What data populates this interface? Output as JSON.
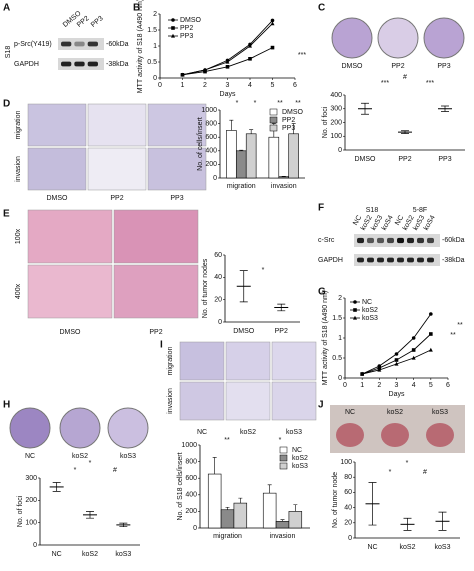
{
  "panels": {
    "A": {
      "letter": "A",
      "lanes": [
        "DMSO",
        "PP2",
        "PP3"
      ],
      "cell_line": "S18",
      "rows": [
        "p-Src(Y419)",
        "GAPDH"
      ],
      "sizes": [
        "-60kDa",
        "-38kDa"
      ]
    },
    "B": {
      "letter": "B"
    },
    "C": {
      "letter": "C",
      "dishes": [
        "DMSO",
        "PP2",
        "PP3"
      ]
    },
    "D": {
      "letter": "D",
      "rows": [
        "migration",
        "invasion"
      ],
      "columns": [
        "DMSO",
        "PP2",
        "PP3"
      ]
    },
    "E": {
      "letter": "E",
      "rows": [
        "100x",
        "400x"
      ],
      "columns": [
        "DMSO",
        "PP2"
      ]
    },
    "F": {
      "letter": "F",
      "groups": [
        "S18",
        "5-8F"
      ],
      "lanes": [
        "NC",
        "koS2",
        "koS3",
        "koS4",
        "NC",
        "koS2",
        "koS3",
        "koS4"
      ],
      "rows": [
        "c-Src",
        "GAPDH"
      ],
      "sizes": [
        "-60kDa",
        "-38kDa"
      ]
    },
    "G": {
      "letter": "G"
    },
    "H": {
      "letter": "H",
      "dishes": [
        "NC",
        "koS2",
        "koS3"
      ]
    },
    "I": {
      "letter": "I",
      "rows": [
        "migration",
        "invasion"
      ],
      "columns": [
        "NC",
        "koS2",
        "koS3"
      ]
    },
    "J": {
      "letter": "J",
      "tumors": [
        "NC",
        "koS2",
        "koS3"
      ]
    }
  },
  "chart_data": [
    {
      "type": "line",
      "y_label": "MTT activity of S18 (A490 nm)",
      "x_label": "Days",
      "x": [
        1,
        2,
        3,
        4,
        5
      ],
      "xlim": [
        0,
        6
      ],
      "xticks": [
        0,
        1,
        2,
        3,
        4,
        5,
        6
      ],
      "ylim": [
        0,
        2
      ],
      "yticks": [
        0,
        0.5,
        1,
        1.5,
        2
      ],
      "series": [
        {
          "name": "DMSO",
          "color": "#000000",
          "values": [
            0.1,
            0.25,
            0.55,
            1.05,
            1.8
          ]
        },
        {
          "name": "PP2",
          "color": "#000000",
          "values": [
            0.1,
            0.2,
            0.35,
            0.6,
            0.95
          ]
        },
        {
          "name": "PP3",
          "color": "#000000",
          "values": [
            0.1,
            0.25,
            0.5,
            1.0,
            1.7
          ]
        }
      ],
      "annotations": [
        "***"
      ]
    },
    {
      "type": "scatter",
      "y_label": "No. of foci",
      "categories": [
        "DMSO",
        "PP2",
        "PP3"
      ],
      "values": [
        300,
        130,
        300
      ],
      "errors": [
        40,
        10,
        20
      ],
      "ylim": [
        0,
        400
      ],
      "yticks": [
        0,
        100,
        200,
        300,
        400
      ],
      "color": "#000000",
      "annotations": [
        "***",
        "***",
        "#"
      ]
    },
    {
      "type": "bar",
      "y_label": "No. of cells/insert",
      "categories": [
        "migration",
        "invasion"
      ],
      "ylim": [
        0,
        1000
      ],
      "yticks": [
        0,
        200,
        400,
        600,
        800,
        1000
      ],
      "series": [
        {
          "name": "DMSO",
          "color": "#ffffff",
          "values": [
            700,
            600
          ],
          "errors": [
            150,
            200
          ]
        },
        {
          "name": "PP2",
          "color": "#8a8a8a",
          "values": [
            400,
            20
          ],
          "errors": [
            10,
            5
          ]
        },
        {
          "name": "PP3",
          "color": "#d0d0d0",
          "values": [
            650,
            650
          ],
          "errors": [
            60,
            150
          ]
        }
      ],
      "annotations": [
        "*",
        "*",
        "**",
        "**"
      ]
    },
    {
      "type": "scatter",
      "y_label": "No. of tumor nodes",
      "categories": [
        "DMSO",
        "PP2"
      ],
      "values": [
        32,
        13
      ],
      "errors": [
        14,
        3
      ],
      "ylim": [
        0,
        60
      ],
      "yticks": [
        0,
        20,
        40,
        60
      ],
      "color": "#000000",
      "annotations": [
        "*"
      ]
    },
    {
      "type": "line",
      "y_label": "MTT activity of S18 (A490 nm)",
      "x_label": "Days",
      "x": [
        1,
        2,
        3,
        4,
        5
      ],
      "xlim": [
        0,
        6
      ],
      "xticks": [
        0,
        1,
        2,
        3,
        4,
        5,
        6
      ],
      "ylim": [
        0,
        2
      ],
      "yticks": [
        0,
        0.5,
        1,
        1.5,
        2
      ],
      "series": [
        {
          "name": "NC",
          "color": "#000000",
          "values": [
            0.1,
            0.3,
            0.6,
            1.0,
            1.6
          ]
        },
        {
          "name": "koS2",
          "color": "#000000",
          "values": [
            0.1,
            0.25,
            0.45,
            0.7,
            1.1
          ]
        },
        {
          "name": "koS3",
          "color": "#000000",
          "values": [
            0.1,
            0.2,
            0.35,
            0.5,
            0.7
          ]
        }
      ],
      "annotations": [
        "**",
        "**"
      ]
    },
    {
      "type": "scatter",
      "y_label": "No. of foci",
      "categories": [
        "NC",
        "koS2",
        "koS3"
      ],
      "values": [
        260,
        135,
        90
      ],
      "errors": [
        20,
        15,
        8
      ],
      "ylim": [
        0,
        300
      ],
      "yticks": [
        0,
        100,
        200,
        300
      ],
      "color": "#000000",
      "annotations": [
        "*",
        "*",
        "#"
      ]
    },
    {
      "type": "bar",
      "y_label": "No. of S18 cells/insert",
      "categories": [
        "migration",
        "invasion"
      ],
      "ylim": [
        0,
        1000
      ],
      "yticks": [
        0,
        200,
        400,
        600,
        800,
        1000
      ],
      "series": [
        {
          "name": "NC",
          "color": "#ffffff",
          "values": [
            650,
            420
          ],
          "errors": [
            200,
            100
          ]
        },
        {
          "name": "koS2",
          "color": "#8a8a8a",
          "values": [
            220,
            80
          ],
          "errors": [
            30,
            20
          ]
        },
        {
          "name": "koS3",
          "color": "#d0d0d0",
          "values": [
            300,
            200
          ],
          "errors": [
            60,
            80
          ]
        }
      ],
      "annotations": [
        "**",
        "*"
      ]
    },
    {
      "type": "scatter",
      "y_label": "No. of tumor node",
      "categories": [
        "NC",
        "koS2",
        "koS3"
      ],
      "values": [
        45,
        18,
        22
      ],
      "errors": [
        28,
        8,
        12
      ],
      "ylim": [
        0,
        100
      ],
      "yticks": [
        0,
        20,
        40,
        60,
        80,
        100
      ],
      "color": "#000000",
      "annotations": [
        "*",
        "*",
        "#"
      ]
    }
  ]
}
